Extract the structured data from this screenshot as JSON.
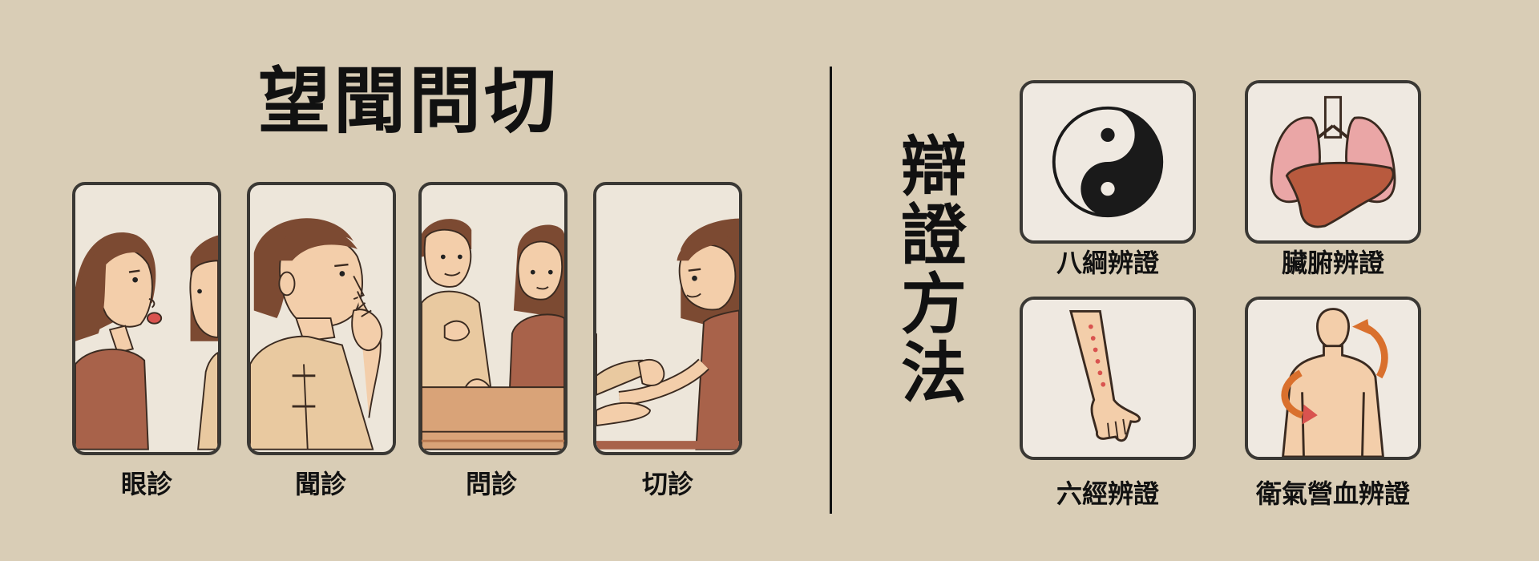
{
  "title": "望聞問切",
  "diagnostic_methods": [
    {
      "label": "眼診"
    },
    {
      "label": "聞診"
    },
    {
      "label": "問診"
    },
    {
      "label": "切診"
    }
  ],
  "right": {
    "title_chars": [
      "辯",
      "證",
      "方",
      "法"
    ],
    "methods": [
      {
        "label": "八綱辨證",
        "icon": "yin-yang-icon"
      },
      {
        "label": "臟腑辨證",
        "icon": "lungs-liver-icon"
      },
      {
        "label": "六經辨證",
        "icon": "arm-meridian-icon"
      },
      {
        "label": "衛氣營血辨證",
        "icon": "body-circulation-icon"
      }
    ]
  },
  "colors": {
    "background": "#d9cdb6",
    "panel_bg": "#ede6da",
    "frame": "#3a3834",
    "skin": "#f0c9a0",
    "shirt_brown": "#a8624a",
    "shirt_tan": "#e9c9a0",
    "hair": "#7c4a32",
    "arrow_orange": "#d9702d"
  }
}
